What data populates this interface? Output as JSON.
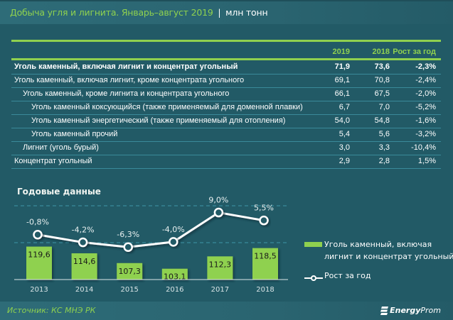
{
  "header": {
    "title": "Добыча угля и лигнита. Январь–август  2019",
    "separator": "|",
    "unit": "млн тонн"
  },
  "table": {
    "columns": [
      "2019",
      "2018",
      "Рост за год"
    ],
    "rows": [
      {
        "label": "Уголь каменный, включая лигнит и концентрат угольный",
        "v2019": "71,9",
        "v2018": "73,6",
        "growth": "-2,3%",
        "indent": 0,
        "bold": true
      },
      {
        "label": "Уголь каменный, включая лигнит, кроме концентрата угольного",
        "v2019": "69,1",
        "v2018": "70,8",
        "growth": "-2,4%",
        "indent": 0,
        "bold": false
      },
      {
        "label": "Уголь каменный, кроме лигнита и концентрата угольного",
        "v2019": "66,1",
        "v2018": "67,5",
        "growth": "-2,0%",
        "indent": 1,
        "bold": false
      },
      {
        "label": "Уголь каменный коксующийся (также применяемый для доменной плавки)",
        "v2019": "6,7",
        "v2018": "7,0",
        "growth": "-5,2%",
        "indent": 2,
        "bold": false
      },
      {
        "label": "Уголь каменный энергетический (также применяемый для отопления)",
        "v2019": "54,0",
        "v2018": "54,8",
        "growth": "-1,6%",
        "indent": 2,
        "bold": false
      },
      {
        "label": "Уголь каменный прочий",
        "v2019": "5,4",
        "v2018": "5,6",
        "growth": "-3,2%",
        "indent": 2,
        "bold": false
      },
      {
        "label": "Лигнит (уголь бурый)",
        "v2019": "3,0",
        "v2018": "3,3",
        "growth": "-10,4%",
        "indent": 1,
        "bold": false
      },
      {
        "label": "Концентрат угольный",
        "v2019": "2,9",
        "v2018": "2,8",
        "growth": "1,5%",
        "indent": 0,
        "bold": false
      }
    ]
  },
  "chart_data": {
    "type": "bar",
    "title": "Годовые данные",
    "categories": [
      "2013",
      "2014",
      "2015",
      "2016",
      "2017",
      "2018"
    ],
    "series": [
      {
        "name": "Уголь каменный, включая лигнит и концентрат угольный",
        "type": "bar",
        "color": "#8fd14f",
        "values": [
          119.6,
          114.6,
          107.3,
          103.1,
          112.3,
          118.5
        ],
        "labels": [
          "119,6",
          "114,6",
          "107,3",
          "103,1",
          "112,3",
          "118,5"
        ]
      },
      {
        "name": "Рост за год",
        "type": "line",
        "color": "#ffffff",
        "values": [
          -0.8,
          -4.2,
          -6.3,
          -4.0,
          9.0,
          5.5
        ],
        "labels": [
          "-0,8%",
          "-4,2%",
          "-6,3%",
          "-4,0%",
          "9,0%",
          "5,5%"
        ]
      }
    ],
    "xlabel": "",
    "ylabel": "",
    "grid": true,
    "legend_position": "right",
    "legend": [
      "Уголь каменный, включая лигнит и концентрат угольный",
      "Рост за год"
    ]
  },
  "footer": {
    "source": "Источник: КС МНЭ РК",
    "brand_bold": "Energy",
    "brand_rest": "Prom"
  },
  "colors": {
    "background": "#225a66",
    "accent_green": "#8fd14f",
    "header_band": "#2e6c78"
  }
}
